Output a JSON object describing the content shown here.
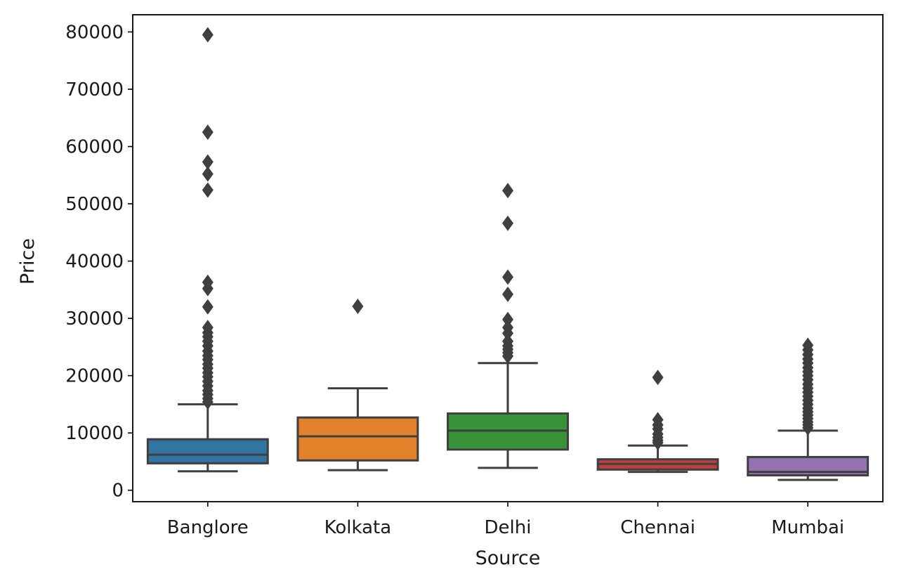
{
  "chart_data": {
    "type": "box",
    "xlabel": "Source",
    "ylabel": "Price",
    "ylim": [
      -2000,
      83000
    ],
    "yticks": [
      0,
      10000,
      20000,
      30000,
      40000,
      50000,
      60000,
      70000,
      80000
    ],
    "ytick_labels": [
      "0",
      "10000",
      "20000",
      "30000",
      "40000",
      "50000",
      "60000",
      "70000",
      "80000"
    ],
    "grid": false,
    "legend": "none",
    "categories": [
      "Banglore",
      "Kolkata",
      "Delhi",
      "Chennai",
      "Mumbai"
    ],
    "boxes": [
      {
        "name": "Banglore",
        "color": "#3274a1",
        "whislo": 3300,
        "q1": 4700,
        "med": 6200,
        "q3": 8900,
        "whishi": 15000,
        "fliers": [
          79500,
          62500,
          57300,
          55200,
          52400,
          36300,
          35200,
          32000,
          28400,
          27500,
          26800,
          26000,
          25200,
          24300,
          23500,
          22800,
          22000,
          21300,
          20500,
          19800,
          19000,
          18200,
          17400,
          16700,
          16000,
          15400
        ]
      },
      {
        "name": "Kolkata",
        "color": "#e1812c",
        "whislo": 3500,
        "q1": 5200,
        "med": 9400,
        "q3": 12700,
        "whishi": 17800,
        "fliers": [
          32100
        ]
      },
      {
        "name": "Delhi",
        "color": "#3a923a",
        "whislo": 3900,
        "q1": 7100,
        "med": 10400,
        "q3": 13400,
        "whishi": 22200,
        "fliers": [
          52300,
          46600,
          37200,
          34200,
          29800,
          28400,
          27400,
          26000,
          25200,
          24600,
          24000,
          23400
        ]
      },
      {
        "name": "Chennai",
        "color": "#c03d3e",
        "whislo": 3200,
        "q1": 3600,
        "med": 4600,
        "q3": 5400,
        "whishi": 7800,
        "fliers": [
          19700,
          12300,
          11400,
          10700,
          9800,
          9200,
          8700,
          8300
        ]
      },
      {
        "name": "Mumbai",
        "color": "#9372b2",
        "whislo": 1800,
        "q1": 2600,
        "med": 3200,
        "q3": 5800,
        "whishi": 10400,
        "fliers": [
          25300,
          24500,
          23700,
          22900,
          22200,
          21400,
          20700,
          20000,
          19300,
          18500,
          17800,
          17100,
          16400,
          15700,
          15000,
          14300,
          13700,
          13100,
          12500,
          11900,
          11400,
          10900
        ]
      }
    ]
  }
}
